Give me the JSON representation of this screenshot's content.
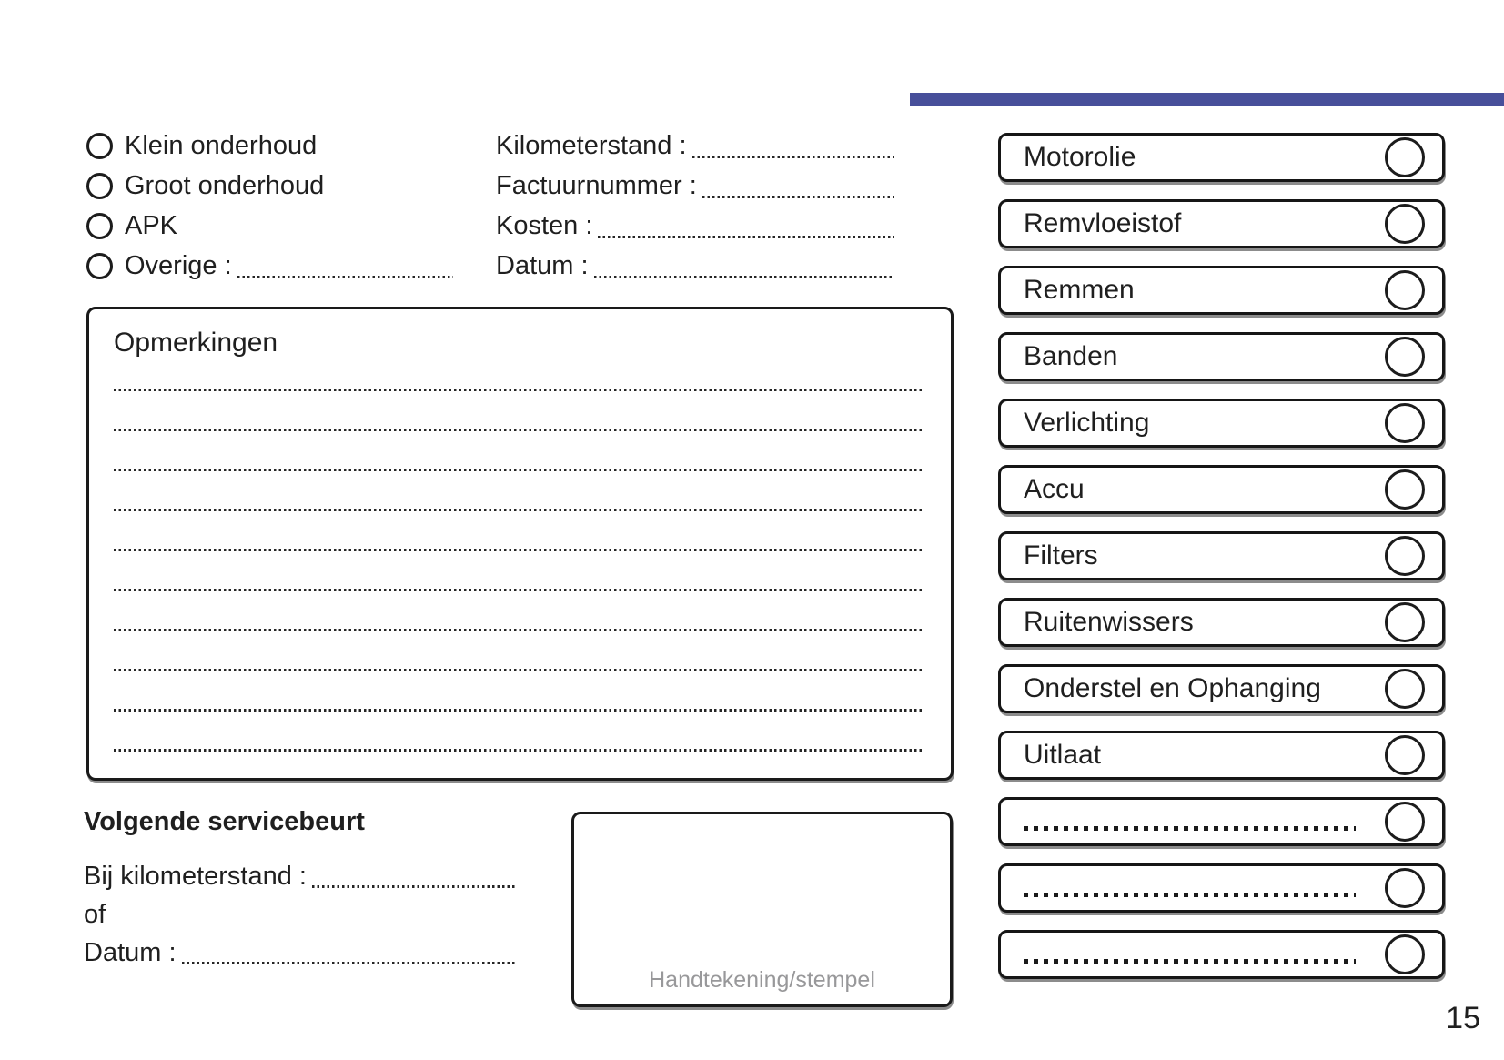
{
  "page": {
    "number": "15",
    "accent_color": "#474f9a"
  },
  "service_type": {
    "options": [
      {
        "label": "Klein onderhoud",
        "leader": false
      },
      {
        "label": "Groot onderhoud",
        "leader": false
      },
      {
        "label": "APK",
        "leader": false
      },
      {
        "label": "Overige :",
        "leader": true
      }
    ]
  },
  "invoice_fields": {
    "rows": [
      {
        "label": "Kilometerstand :",
        "value": ""
      },
      {
        "label": "Factuurnummer :",
        "value": ""
      },
      {
        "label": "Kosten :",
        "value": ""
      },
      {
        "label": "Datum :",
        "value": ""
      }
    ]
  },
  "remarks": {
    "title": "Opmerkingen",
    "line_count": 10
  },
  "checklist": {
    "items": [
      {
        "label": "Motorolie",
        "dotted": false,
        "checked": false
      },
      {
        "label": "Remvloeistof",
        "dotted": false,
        "checked": false
      },
      {
        "label": "Remmen",
        "dotted": false,
        "checked": false
      },
      {
        "label": "Banden",
        "dotted": false,
        "checked": false
      },
      {
        "label": "Verlichting",
        "dotted": false,
        "checked": false
      },
      {
        "label": "Accu",
        "dotted": false,
        "checked": false
      },
      {
        "label": "Filters",
        "dotted": false,
        "checked": false
      },
      {
        "label": "Ruitenwissers",
        "dotted": false,
        "checked": false
      },
      {
        "label": "Onderstel en Ophanging",
        "dotted": false,
        "checked": false
      },
      {
        "label": "Uitlaat",
        "dotted": false,
        "checked": false
      },
      {
        "label": "",
        "dotted": true,
        "checked": false
      },
      {
        "label": "",
        "dotted": true,
        "checked": false
      },
      {
        "label": "",
        "dotted": true,
        "checked": false
      }
    ]
  },
  "next_service": {
    "title": "Volgende servicebeurt",
    "rows": [
      {
        "label": "Bij kilometerstand :",
        "leader": true,
        "value": ""
      },
      {
        "label": "of",
        "leader": false,
        "value": ""
      },
      {
        "label": "Datum :",
        "leader": true,
        "value": ""
      }
    ]
  },
  "signature": {
    "label": "Handtekening/stempel"
  }
}
